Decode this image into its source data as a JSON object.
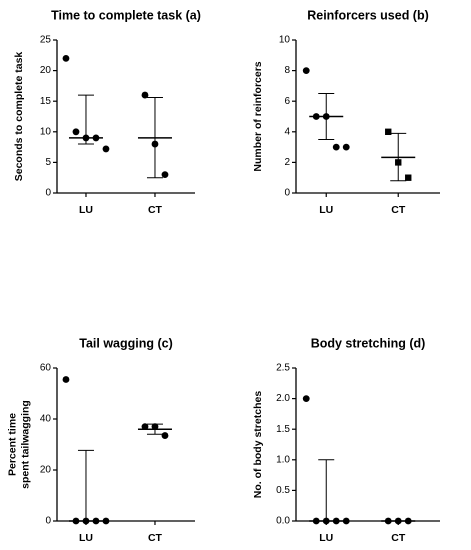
{
  "chart_data": [
    {
      "type": "dot",
      "title": "Time to complete task (a)",
      "ylabel": [
        "Seconds to complete task"
      ],
      "categories": [
        "LU",
        "CT"
      ],
      "points": [
        [
          22,
          10,
          9,
          9,
          7.2
        ],
        [
          16,
          8,
          3
        ]
      ],
      "markers": [
        "circle",
        "circle"
      ],
      "center": [
        9,
        9
      ],
      "low": [
        8,
        2.5
      ],
      "high": [
        16,
        15.6
      ],
      "ylim": [
        0,
        25
      ],
      "yticks": [
        0,
        5,
        10,
        15,
        20,
        25
      ],
      "color": "#000000"
    },
    {
      "type": "dot",
      "title": "Reinforcers used (b)",
      "ylabel": [
        "Number of reinforcers"
      ],
      "categories": [
        "LU",
        "CT"
      ],
      "points": [
        [
          8,
          5,
          5,
          3,
          3
        ],
        [
          4,
          2,
          1
        ]
      ],
      "markers": [
        "circle",
        "square"
      ],
      "center": [
        5,
        2.33
      ],
      "low": [
        3.5,
        0.8
      ],
      "high": [
        6.5,
        3.9
      ],
      "ylim": [
        0,
        10
      ],
      "yticks": [
        0,
        2,
        4,
        6,
        8,
        10
      ],
      "color": "#000000"
    },
    {
      "type": "dot",
      "title": "Tail wagging (c)",
      "ylabel": [
        "Percent time",
        "spent tailwagging"
      ],
      "categories": [
        "LU",
        "CT"
      ],
      "points": [
        [
          55.5,
          0,
          0,
          0,
          0
        ],
        [
          37,
          37,
          33.5
        ]
      ],
      "markers": [
        "circle",
        "circle"
      ],
      "center": [
        0,
        36
      ],
      "low": [
        0,
        34
      ],
      "high": [
        27.7,
        38
      ],
      "ylim": [
        0,
        60
      ],
      "yticks": [
        0,
        20,
        40,
        60
      ],
      "color": "#000000"
    },
    {
      "type": "dot",
      "title": "Body stretching (d)",
      "ylabel": [
        "No. of body stretches"
      ],
      "categories": [
        "LU",
        "CT"
      ],
      "points": [
        [
          2,
          0,
          0,
          0,
          0
        ],
        [
          0,
          0,
          0
        ]
      ],
      "markers": [
        "circle",
        "circle"
      ],
      "center": [
        0,
        0
      ],
      "low": [
        0,
        0
      ],
      "high": [
        1,
        0
      ],
      "ylim": [
        0,
        2.5
      ],
      "yticks": [
        {
          "value": 0,
          "label": "0.0"
        },
        0.5,
        {
          "value": 1,
          "label": "1.0"
        },
        1.5,
        {
          "value": 2,
          "label": "2.0"
        },
        2.5
      ],
      "color": "#000000"
    }
  ]
}
